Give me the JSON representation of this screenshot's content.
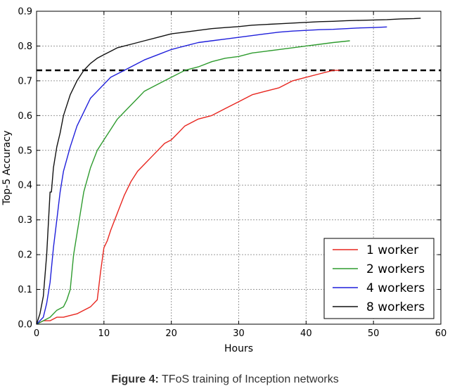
{
  "chart_data": {
    "type": "line",
    "title": "",
    "xlabel": "Hours",
    "ylabel": "Top-5 Accuracy",
    "xlim": [
      0,
      60
    ],
    "ylim": [
      0,
      0.9
    ],
    "xticks": [
      0,
      10,
      20,
      30,
      40,
      50,
      60
    ],
    "yticks": [
      0.0,
      0.1,
      0.2,
      0.3,
      0.4,
      0.5,
      0.6,
      0.7,
      0.8,
      0.9
    ],
    "xtick_labels": [
      "0",
      "10",
      "20",
      "30",
      "40",
      "50",
      "60"
    ],
    "ytick_labels": [
      "0.0",
      "0.1",
      "0.2",
      "0.3",
      "0.4",
      "0.5",
      "0.6",
      "0.7",
      "0.8",
      "0.9"
    ],
    "grid": true,
    "legend_position": "bottom-right",
    "reference_line": {
      "y": 0.73,
      "style": "dashed",
      "color": "#000000"
    },
    "series": [
      {
        "name": "1 worker",
        "color": "#e8261f",
        "x": [
          0,
          1,
          2,
          3,
          4,
          5,
          6,
          7,
          8,
          9,
          9.5,
          10,
          10.5,
          11,
          12,
          13,
          14,
          15,
          16,
          17,
          18,
          19,
          20,
          21,
          22,
          23,
          24,
          26,
          28,
          30,
          32,
          34,
          36,
          38,
          40,
          42,
          44,
          45
        ],
        "y": [
          0.0,
          0.01,
          0.01,
          0.02,
          0.02,
          0.025,
          0.03,
          0.04,
          0.05,
          0.07,
          0.15,
          0.22,
          0.24,
          0.27,
          0.32,
          0.37,
          0.41,
          0.44,
          0.46,
          0.48,
          0.5,
          0.52,
          0.53,
          0.55,
          0.57,
          0.58,
          0.59,
          0.6,
          0.62,
          0.64,
          0.66,
          0.67,
          0.68,
          0.7,
          0.71,
          0.72,
          0.73,
          0.73
        ]
      },
      {
        "name": "2 workers",
        "color": "#2e9b2e",
        "x": [
          0,
          1,
          2,
          3,
          4,
          4.5,
          5,
          5.5,
          6,
          6.5,
          7,
          8,
          9,
          10,
          11,
          12,
          13,
          14,
          15,
          16,
          17,
          18,
          20,
          22,
          24,
          26,
          28,
          30,
          32,
          34,
          36,
          38,
          40,
          42,
          44,
          46.5
        ],
        "y": [
          0.0,
          0.01,
          0.02,
          0.04,
          0.05,
          0.07,
          0.1,
          0.2,
          0.26,
          0.32,
          0.38,
          0.45,
          0.5,
          0.53,
          0.56,
          0.59,
          0.61,
          0.63,
          0.65,
          0.67,
          0.68,
          0.69,
          0.71,
          0.73,
          0.74,
          0.755,
          0.765,
          0.77,
          0.78,
          0.785,
          0.79,
          0.795,
          0.8,
          0.805,
          0.81,
          0.815
        ]
      },
      {
        "name": "4 workers",
        "color": "#1f1fdb",
        "x": [
          0,
          1,
          1.5,
          2,
          2.5,
          3,
          3.5,
          4,
          5,
          6,
          7,
          8,
          9,
          10,
          11,
          12,
          13,
          14,
          16,
          18,
          20,
          22,
          24,
          26,
          28,
          30,
          32,
          34,
          36,
          38,
          40,
          42,
          44,
          46,
          48,
          50,
          52
        ],
        "y": [
          0.0,
          0.02,
          0.06,
          0.12,
          0.22,
          0.3,
          0.38,
          0.44,
          0.51,
          0.57,
          0.61,
          0.65,
          0.67,
          0.69,
          0.71,
          0.72,
          0.73,
          0.74,
          0.76,
          0.775,
          0.79,
          0.8,
          0.81,
          0.815,
          0.82,
          0.825,
          0.83,
          0.835,
          0.84,
          0.843,
          0.845,
          0.847,
          0.848,
          0.85,
          0.852,
          0.853,
          0.855
        ]
      },
      {
        "name": "8 workers",
        "color": "#111111",
        "x": [
          0,
          0.5,
          1,
          1.5,
          2,
          2.2,
          2.5,
          3,
          3.5,
          4,
          5,
          6,
          7,
          8,
          9,
          10,
          11,
          12,
          13,
          14,
          16,
          18,
          20,
          22,
          24,
          26,
          28,
          30,
          32,
          34,
          36,
          38,
          40,
          42,
          44,
          46,
          48,
          50,
          52,
          54,
          56,
          57
        ],
        "y": [
          0.0,
          0.03,
          0.08,
          0.2,
          0.38,
          0.38,
          0.45,
          0.51,
          0.55,
          0.6,
          0.66,
          0.7,
          0.73,
          0.75,
          0.765,
          0.775,
          0.785,
          0.795,
          0.8,
          0.805,
          0.815,
          0.825,
          0.835,
          0.84,
          0.845,
          0.85,
          0.853,
          0.856,
          0.86,
          0.862,
          0.864,
          0.866,
          0.868,
          0.87,
          0.871,
          0.873,
          0.874,
          0.875,
          0.876,
          0.878,
          0.879,
          0.88
        ]
      }
    ]
  },
  "caption": {
    "label": "Figure 4:",
    "text": " TFoS training of Inception networks"
  }
}
